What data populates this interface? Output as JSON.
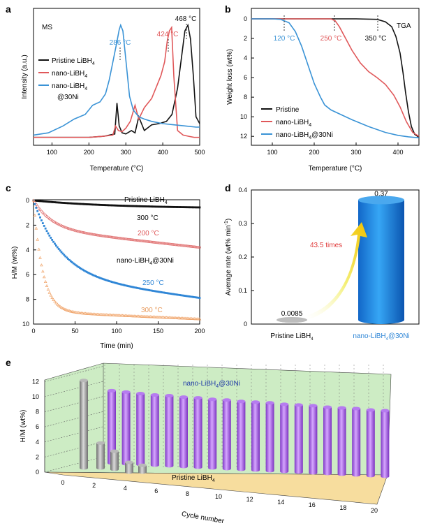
{
  "colors": {
    "pristine": "#111111",
    "nano": "#e0585a",
    "ni": "#3a93d6",
    "c_200": "#e07070",
    "c_250": "#2f86d6",
    "c_300": "#f0a46a",
    "bar_pristine": "#9a9a9a",
    "bar_ni": "#1f86e6",
    "bar3d_pristine": "#9b9b9b",
    "bar3d_ni": "#a45be0",
    "wall": "#cdecc4",
    "floor": "#f7dd9e"
  },
  "chart_data": [
    {
      "panel": "a",
      "type": "line",
      "title": "MS",
      "xlabel": "Temperature (°C)",
      "ylabel": "Intensity (a.u.)",
      "xlim": [
        50,
        500
      ],
      "xticks": [
        100,
        200,
        300,
        400,
        500
      ],
      "legend": [
        "Pristine LiBH",
        "nano-LiBH",
        "nano-LiBH",
        "@30Ni"
      ],
      "legend_sub": "4",
      "annotations": [
        "286 °C",
        "424 °C",
        "468 °C"
      ],
      "series": [
        {
          "name": "Pristine LiBH4",
          "color_key": "pristine",
          "x": [
            50,
            100,
            150,
            200,
            240,
            270,
            276,
            282,
            290,
            300,
            315,
            325,
            335,
            350,
            370,
            390,
            410,
            425,
            440,
            452,
            460,
            468,
            475,
            483,
            490,
            500
          ],
          "y": [
            0.02,
            0.02,
            0.02,
            0.02,
            0.03,
            0.05,
            0.32,
            0.12,
            0.06,
            0.05,
            0.08,
            0.06,
            0.2,
            0.08,
            0.13,
            0.14,
            0.16,
            0.22,
            0.45,
            0.75,
            0.95,
            1.0,
            0.88,
            0.55,
            0.2,
            0.14
          ]
        },
        {
          "name": "nano-LiBH4",
          "color_key": "nano",
          "x": [
            50,
            100,
            150,
            200,
            240,
            265,
            272,
            280,
            290,
            300,
            312,
            325,
            335,
            350,
            370,
            385,
            395,
            405,
            412,
            418,
            424,
            430,
            440,
            455,
            470,
            485,
            500
          ],
          "y": [
            0.02,
            0.02,
            0.02,
            0.02,
            0.03,
            0.04,
            0.12,
            0.08,
            0.07,
            0.1,
            0.16,
            0.3,
            0.18,
            0.28,
            0.36,
            0.48,
            0.56,
            0.68,
            0.86,
            0.95,
            0.98,
            0.55,
            0.08,
            0.04,
            0.03,
            0.02,
            0.02
          ]
        },
        {
          "name": "nano-LiBH4@30Ni",
          "color_key": "ni",
          "x": [
            50,
            90,
            130,
            160,
            190,
            210,
            230,
            245,
            255,
            265,
            275,
            282,
            286,
            292,
            300,
            310,
            320,
            335,
            350,
            370,
            400,
            430,
            460,
            490,
            500
          ],
          "y": [
            0.04,
            0.06,
            0.12,
            0.18,
            0.22,
            0.3,
            0.33,
            0.4,
            0.52,
            0.68,
            0.84,
            0.96,
            1.0,
            0.95,
            0.7,
            0.38,
            0.26,
            0.2,
            0.18,
            0.16,
            0.14,
            0.13,
            0.12,
            0.11,
            0.11
          ]
        }
      ]
    },
    {
      "panel": "b",
      "type": "line",
      "title": "TGA",
      "xlabel": "Temperature (°C)",
      "ylabel": "Weight loss (wt%)",
      "xlim": [
        50,
        450
      ],
      "ylim": [
        0,
        12.5
      ],
      "y_inverted": true,
      "xticks": [
        100,
        200,
        300,
        400
      ],
      "yticks": [
        0,
        2,
        4,
        6,
        8,
        10,
        12
      ],
      "legend": [
        "Pristine",
        "nano-LiBH",
        "nano-LiBH"
      ],
      "legend_sub": "4",
      "legend_suffix": "@30Ni",
      "annotations": [
        "120 °C",
        "250 °C",
        "350 °C"
      ],
      "series": [
        {
          "name": "Pristine",
          "color_key": "pristine",
          "x": [
            50,
            200,
            300,
            350,
            370,
            385,
            395,
            405,
            412,
            418,
            425,
            432,
            440,
            450
          ],
          "y": [
            0,
            0,
            0,
            0.05,
            0.3,
            0.8,
            1.8,
            3.5,
            5.5,
            7.5,
            9.5,
            11.0,
            11.8,
            12.1
          ]
        },
        {
          "name": "nano-LiBH4",
          "color_key": "nano",
          "x": [
            50,
            200,
            240,
            250,
            260,
            275,
            290,
            310,
            330,
            350,
            370,
            390,
            405,
            420,
            435,
            450
          ],
          "y": [
            0,
            0,
            0,
            0.2,
            0.8,
            2.0,
            3.2,
            4.5,
            5.4,
            6.0,
            6.7,
            7.8,
            9.0,
            10.5,
            11.6,
            12.0
          ]
        },
        {
          "name": "nano-LiBH4@30Ni",
          "color_key": "ni",
          "x": [
            50,
            100,
            120,
            140,
            155,
            170,
            185,
            200,
            215,
            225,
            240,
            260,
            290,
            330,
            370,
            400,
            425,
            450
          ],
          "y": [
            0,
            0,
            0.05,
            0.4,
            1.3,
            2.8,
            4.7,
            6.6,
            8.0,
            8.8,
            9.3,
            9.7,
            10.3,
            11.0,
            11.6,
            11.9,
            12.05,
            12.15
          ]
        }
      ]
    },
    {
      "panel": "c",
      "type": "scatter",
      "xlabel": "Time (min)",
      "ylabel": "H/M (wt%)",
      "xlim": [
        0,
        200
      ],
      "ylim": [
        0,
        10
      ],
      "y_inverted": true,
      "xticks": [
        0,
        50,
        100,
        150,
        200
      ],
      "yticks": [
        0,
        2,
        4,
        6,
        8,
        10
      ],
      "labels": {
        "pristine": "Pristine LiBH",
        "pristine_temp": "300 °C",
        "ni": "nano-LiBH",
        "ni_suffix": "@30Ni",
        "t200": "200 °C",
        "t250": "250 °C",
        "t300": "300 °C",
        "sub": "4"
      },
      "series": [
        {
          "name": "Pristine LiBH4 300 °C",
          "color_key": "pristine",
          "marker": "square",
          "k": 0.01,
          "cap": 0.65
        },
        {
          "name": "nano-LiBH4@30Ni 200 °C",
          "color_key": "c_200",
          "marker": "circle",
          "k": 0.045,
          "cap": 2.3,
          "linear": 0.0075
        },
        {
          "name": "nano-LiBH4@30Ni 250 °C",
          "color_key": "c_250",
          "marker": "square",
          "k": 0.03,
          "cap": 6.1,
          "linear": 0.009
        },
        {
          "name": "nano-LiBH4@30Ni 300 °C",
          "color_key": "c_300",
          "marker": "triangle",
          "k": 0.09,
          "cap": 9.0,
          "linear": 0.003
        }
      ]
    },
    {
      "panel": "d",
      "type": "bar",
      "ylabel": "Average rate (wt% min",
      "ylabel_sup": "-1",
      "ylabel_end": ")",
      "ylim": [
        0,
        0.4
      ],
      "yticks": [
        0,
        0.1,
        0.2,
        0.3,
        0.4
      ],
      "categories": [
        "Pristine LiBH",
        "nano-LiBH"
      ],
      "category_sub": "4",
      "category_suffix": [
        "",
        "@30Ni"
      ],
      "values": [
        0.0085,
        0.37
      ],
      "value_labels": [
        "0.0085",
        "0.37"
      ],
      "annotation": "43.5 times"
    },
    {
      "panel": "e",
      "type": "bar",
      "ylabel": "H/M (wt%)",
      "xlabel": "Cycle number",
      "ylim": [
        0,
        12
      ],
      "yticks": [
        0,
        2,
        4,
        6,
        8,
        10,
        12
      ],
      "xticks": [
        0,
        2,
        4,
        6,
        8,
        10,
        12,
        14,
        16,
        18,
        20
      ],
      "series": [
        {
          "name": "Pristine LiBH4",
          "label": "Pristine LiBH",
          "sub": "4",
          "color_key": "bar3d_pristine",
          "x": [
            1,
            2,
            3,
            4,
            5
          ],
          "values": [
            11.6,
            3.3,
            2.4,
            1.3,
            0.9
          ]
        },
        {
          "name": "nano-LiBH4@30Ni",
          "label": "nano-LiBH",
          "sub": "4",
          "suffix": "@30Ni",
          "color_key": "bar3d_ni",
          "x": [
            1,
            2,
            3,
            4,
            5,
            6,
            7,
            8,
            9,
            10,
            11,
            12,
            13,
            14,
            15,
            16,
            17,
            18,
            19,
            20
          ],
          "values": [
            9.6,
            9.5,
            9.4,
            9.3,
            9.3,
            9.2,
            9.2,
            9.1,
            9.1,
            9.0,
            9.0,
            9.0,
            8.9,
            8.9,
            8.9,
            8.8,
            8.8,
            8.8,
            8.7,
            8.7
          ]
        }
      ]
    }
  ]
}
